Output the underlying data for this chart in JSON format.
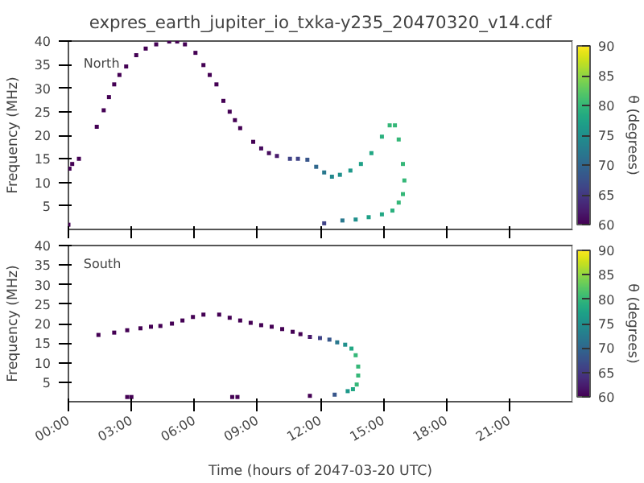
{
  "chart_data": [
    {
      "type": "scatter",
      "title": "expres_earth_jupiter_io_txka-y235_20470320_v14.cdf",
      "ylabel": "Frequency (MHz)",
      "clabel": "θ (degrees)",
      "annotations": [
        "North"
      ],
      "marker": "square",
      "grid": false,
      "tick_labels": "y",
      "x": [
        0.0,
        0.05,
        0.18,
        0.5,
        1.35,
        1.68,
        1.93,
        2.18,
        2.43,
        2.75,
        3.23,
        3.68,
        4.18,
        4.8,
        5.18,
        5.55,
        6.05,
        6.43,
        6.73,
        7.05,
        7.38,
        7.68,
        7.93,
        8.18,
        8.8,
        9.18,
        9.55,
        9.93,
        10.55,
        10.93,
        11.38,
        11.8,
        12.18,
        12.55,
        12.93,
        13.43,
        13.93,
        14.43,
        14.93,
        15.3,
        15.55,
        15.73,
        15.93,
        16.0,
        15.93,
        15.73,
        15.43,
        14.93,
        14.3,
        13.68,
        13.05,
        12.18
      ],
      "values": [
        1.0,
        12.9,
        13.9,
        15.0,
        21.8,
        25.3,
        28.1,
        30.8,
        32.8,
        34.6,
        37.0,
        38.4,
        39.3,
        39.9,
        39.9,
        39.3,
        37.5,
        34.9,
        32.8,
        30.8,
        27.3,
        25.0,
        23.2,
        21.5,
        18.6,
        17.2,
        16.2,
        15.6,
        15.0,
        15.0,
        14.8,
        13.3,
        12.1,
        11.2,
        11.6,
        12.5,
        13.9,
        16.2,
        19.7,
        22.1,
        22.1,
        19.1,
        13.9,
        10.4,
        7.5,
        5.7,
        4.0,
        3.2,
        2.6,
        2.1,
        1.9,
        1.3
      ],
      "cvalues": [
        60,
        60,
        60,
        60,
        60,
        60,
        60,
        60,
        60,
        60,
        60,
        60,
        60,
        60,
        60,
        60,
        60,
        60,
        60,
        60,
        60,
        60,
        60,
        60,
        60,
        61,
        61,
        62,
        66,
        66,
        68,
        70,
        72,
        74,
        75,
        76,
        77,
        78,
        79,
        80,
        80,
        80,
        80,
        80,
        80,
        80,
        79,
        78,
        77,
        75,
        72,
        66
      ],
      "xlim": [
        0,
        24
      ],
      "xticks": [
        {
          "value": 0,
          "label": null
        },
        {
          "value": 3,
          "label": null
        },
        {
          "value": 6,
          "label": null
        },
        {
          "value": 9,
          "label": null
        },
        {
          "value": 12,
          "label": null
        },
        {
          "value": 15,
          "label": null
        },
        {
          "value": 18,
          "label": null
        },
        {
          "value": 21,
          "label": null
        }
      ],
      "ylim": [
        0,
        40
      ],
      "yticks": [
        5,
        10,
        15,
        20,
        25,
        30,
        35,
        40
      ],
      "clim": [
        60,
        90
      ],
      "cticks": [
        60,
        65,
        70,
        75,
        80,
        85,
        90
      ]
    },
    {
      "type": "scatter",
      "xlabel": "Time (hours of 2047-03-20 UTC)",
      "ylabel": "Frequency (MHz)",
      "clabel": "θ (degrees)",
      "annotations": [
        "South"
      ],
      "marker": "square",
      "grid": false,
      "x": [
        1.43,
        2.18,
        2.8,
        3.43,
        3.93,
        4.38,
        4.93,
        5.43,
        5.93,
        6.43,
        7.18,
        7.68,
        8.18,
        8.68,
        9.18,
        9.68,
        10.18,
        10.68,
        11.05,
        11.5,
        11.98,
        12.43,
        12.8,
        13.18,
        13.48,
        13.68,
        13.8,
        13.8,
        13.73,
        13.55,
        13.3,
        12.68,
        11.5,
        7.8,
        8.05,
        2.8,
        3.0
      ],
      "values": [
        17.1,
        17.7,
        18.3,
        18.8,
        19.2,
        19.4,
        20.0,
        20.8,
        21.7,
        22.3,
        22.3,
        21.5,
        20.8,
        20.2,
        19.6,
        19.2,
        18.6,
        17.9,
        17.3,
        16.6,
        16.3,
        15.9,
        15.2,
        14.6,
        13.6,
        11.9,
        9.0,
        6.7,
        4.4,
        3.2,
        2.7,
        1.8,
        1.5,
        1.2,
        1.2,
        1.2,
        1.2
      ],
      "cvalues": [
        60,
        60,
        60,
        60,
        60,
        60,
        60,
        60,
        60,
        60,
        60,
        60,
        60,
        60,
        60,
        60,
        60,
        60,
        60,
        62,
        66,
        68,
        72,
        75,
        78,
        80,
        80,
        80,
        80,
        78,
        76,
        68,
        60,
        60,
        60,
        60,
        60
      ],
      "xlim": [
        0,
        24
      ],
      "xticks": [
        {
          "value": 0,
          "label": "00:00"
        },
        {
          "value": 3,
          "label": "03:00"
        },
        {
          "value": 6,
          "label": "06:00"
        },
        {
          "value": 9,
          "label": "09:00"
        },
        {
          "value": 12,
          "label": "12:00"
        },
        {
          "value": 15,
          "label": "15:00"
        },
        {
          "value": 18,
          "label": "18:00"
        },
        {
          "value": 21,
          "label": "21:00"
        }
      ],
      "ylim": [
        0,
        40
      ],
      "yticks": [
        5,
        10,
        15,
        20,
        25,
        30,
        35,
        40
      ],
      "clim": [
        60,
        90
      ],
      "cticks": [
        60,
        65,
        70,
        75,
        80,
        85,
        90
      ]
    }
  ]
}
